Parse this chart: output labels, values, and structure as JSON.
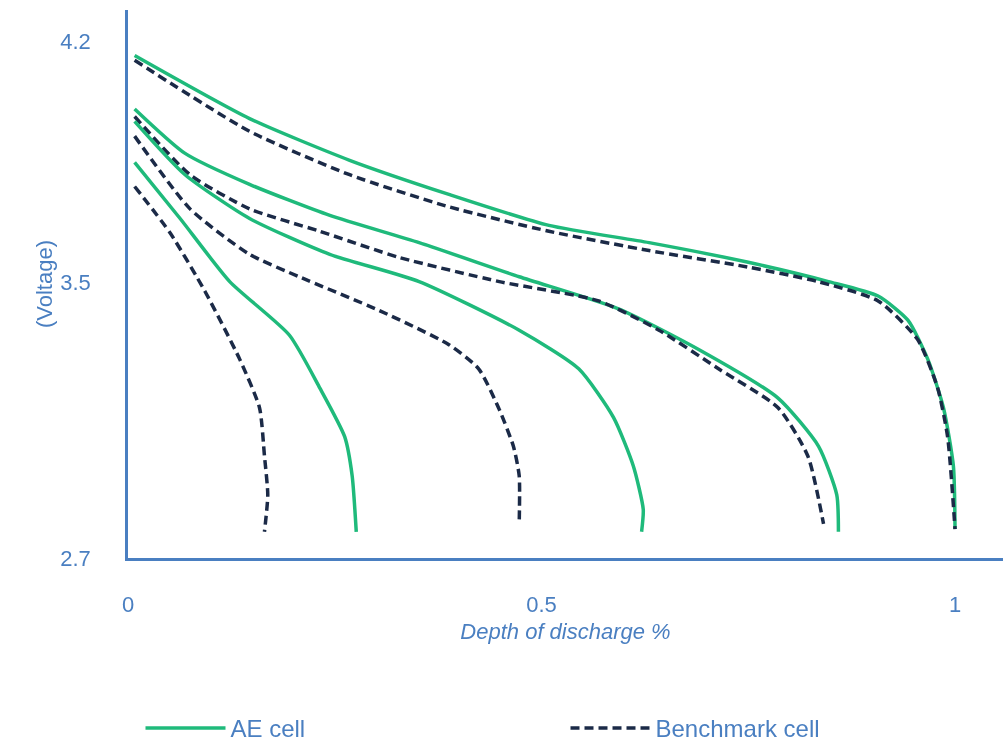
{
  "chart_data": {
    "type": "line",
    "xlabel": "Depth of discharge %",
    "ylabel": "(Voltage)",
    "xlim": [
      0,
      1.058
    ],
    "ylim": [
      2.7,
      4.29
    ],
    "xticks": [
      0,
      0.5,
      1
    ],
    "yticks": [
      2.7,
      3.5,
      4.2
    ],
    "legend": "bottom",
    "marker": "none",
    "series": [
      {
        "name": "AE cell",
        "color": "#1fba7b",
        "line_style": "solid",
        "x": [
          0.008,
          0.147,
          0.268,
          0.388,
          0.509,
          0.63,
          0.75,
          0.847,
          0.907,
          0.943,
          0.967,
          0.986,
          0.998,
          1.0
        ],
        "values": [
          4.158,
          3.975,
          3.854,
          3.755,
          3.665,
          3.615,
          3.558,
          3.502,
          3.46,
          3.39,
          3.277,
          3.136,
          2.967,
          2.784
        ]
      },
      {
        "name": "Benchmark cell",
        "color": "#1b2a47",
        "line_style": "dashed",
        "x": [
          0.008,
          0.147,
          0.268,
          0.388,
          0.509,
          0.63,
          0.75,
          0.834,
          0.907,
          0.955,
          0.979,
          0.991,
          1.0
        ],
        "values": [
          4.144,
          3.938,
          3.812,
          3.719,
          3.648,
          3.592,
          3.544,
          3.502,
          3.446,
          3.333,
          3.193,
          3.052,
          2.784
        ]
      },
      {
        "color": "#1fba7b",
        "line_style": "solid",
        "x": [
          0.008,
          0.069,
          0.147,
          0.244,
          0.352,
          0.473,
          0.593,
          0.69,
          0.786,
          0.835,
          0.857,
          0.859
        ],
        "values": [
          4.003,
          3.874,
          3.784,
          3.694,
          3.615,
          3.516,
          3.423,
          3.305,
          3.164,
          3.024,
          2.883,
          2.776
        ]
      },
      {
        "color": "#1b2a47",
        "line_style": "dashed",
        "x": [
          0.008,
          0.075,
          0.147,
          0.232,
          0.328,
          0.449,
          0.569,
          0.642,
          0.714,
          0.786,
          0.822,
          0.841
        ],
        "values": [
          3.981,
          3.812,
          3.713,
          3.648,
          3.572,
          3.502,
          3.446,
          3.361,
          3.249,
          3.136,
          2.996,
          2.799
        ]
      },
      {
        "color": "#1fba7b",
        "line_style": "solid",
        "x": [
          0.008,
          0.069,
          0.147,
          0.244,
          0.352,
          0.473,
          0.545,
          0.587,
          0.611,
          0.623,
          0.621
        ],
        "values": [
          3.967,
          3.812,
          3.685,
          3.581,
          3.502,
          3.361,
          3.249,
          3.108,
          2.967,
          2.841,
          2.776
        ]
      },
      {
        "color": "#1b2a47",
        "line_style": "dashed",
        "x": [
          0.008,
          0.075,
          0.147,
          0.207,
          0.304,
          0.388,
          0.424,
          0.448,
          0.466,
          0.473,
          0.473
        ],
        "values": [
          3.924,
          3.713,
          3.581,
          3.516,
          3.418,
          3.319,
          3.249,
          3.136,
          3.024,
          2.939,
          2.799
        ]
      },
      {
        "color": "#1fba7b",
        "line_style": "solid",
        "x": [
          0.008,
          0.063,
          0.123,
          0.195,
          0.232,
          0.262,
          0.271,
          0.276
        ],
        "values": [
          3.848,
          3.685,
          3.502,
          3.347,
          3.193,
          3.052,
          2.939,
          2.776
        ]
      },
      {
        "color": "#1b2a47",
        "line_style": "dashed",
        "x": [
          0.008,
          0.051,
          0.093,
          0.135,
          0.159,
          0.165,
          0.169,
          0.165
        ],
        "values": [
          3.778,
          3.643,
          3.474,
          3.277,
          3.136,
          2.996,
          2.883,
          2.776
        ]
      }
    ]
  }
}
